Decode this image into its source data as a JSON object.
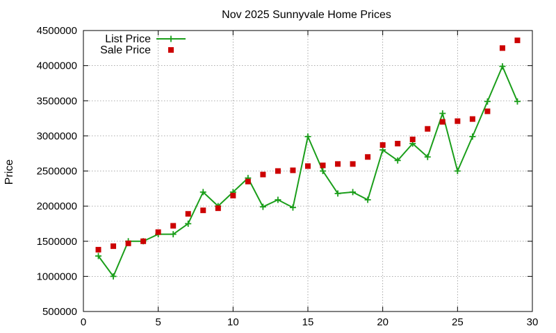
{
  "chart_data": {
    "type": "line",
    "title": "Nov 2025 Sunnyvale Home Prices",
    "xlabel": "",
    "ylabel": "Price",
    "xlim": [
      0,
      30
    ],
    "ylim": [
      500000,
      4500000
    ],
    "x_ticks": [
      0,
      5,
      10,
      15,
      20,
      25,
      30
    ],
    "y_ticks": [
      500000,
      1000000,
      1500000,
      2000000,
      2500000,
      3000000,
      3500000,
      4000000,
      4500000
    ],
    "grid": true,
    "legend_position": "top-left",
    "series": [
      {
        "name": "List Price",
        "style": "line-plus",
        "color": "#1a9e1a",
        "points": [
          [
            1,
            1290000
          ],
          [
            2,
            1000000
          ],
          [
            3,
            1500000
          ],
          [
            4,
            1500000
          ],
          [
            5,
            1600000
          ],
          [
            6,
            1600000
          ],
          [
            7,
            1750000
          ],
          [
            8,
            2200000
          ],
          [
            9,
            2000000
          ],
          [
            10,
            2200000
          ],
          [
            11,
            2400000
          ],
          [
            12,
            1990000
          ],
          [
            13,
            2090000
          ],
          [
            14,
            1980000
          ],
          [
            15,
            2990000
          ],
          [
            16,
            2500000
          ],
          [
            17,
            2180000
          ],
          [
            18,
            2200000
          ],
          [
            19,
            2090000
          ],
          [
            20,
            2800000
          ],
          [
            21,
            2650000
          ],
          [
            22,
            2890000
          ],
          [
            23,
            2700000
          ],
          [
            24,
            3320000
          ],
          [
            25,
            2500000
          ],
          [
            26,
            2990000
          ],
          [
            27,
            3490000
          ],
          [
            28,
            3990000
          ],
          [
            29,
            3490000
          ]
        ]
      },
      {
        "name": "Sale Price",
        "style": "square",
        "color": "#cc0000",
        "points": [
          [
            1,
            1380000
          ],
          [
            2,
            1430000
          ],
          [
            3,
            1470000
          ],
          [
            4,
            1500000
          ],
          [
            5,
            1630000
          ],
          [
            6,
            1720000
          ],
          [
            7,
            1890000
          ],
          [
            8,
            1940000
          ],
          [
            9,
            1970000
          ],
          [
            10,
            2150000
          ],
          [
            11,
            2350000
          ],
          [
            12,
            2450000
          ],
          [
            13,
            2500000
          ],
          [
            14,
            2510000
          ],
          [
            15,
            2570000
          ],
          [
            16,
            2580000
          ],
          [
            17,
            2600000
          ],
          [
            18,
            2600000
          ],
          [
            19,
            2700000
          ],
          [
            20,
            2870000
          ],
          [
            21,
            2890000
          ],
          [
            22,
            2950000
          ],
          [
            23,
            3100000
          ],
          [
            24,
            3200000
          ],
          [
            25,
            3210000
          ],
          [
            26,
            3240000
          ],
          [
            27,
            3350000
          ],
          [
            28,
            4250000
          ],
          [
            29,
            4360000
          ]
        ]
      }
    ]
  }
}
